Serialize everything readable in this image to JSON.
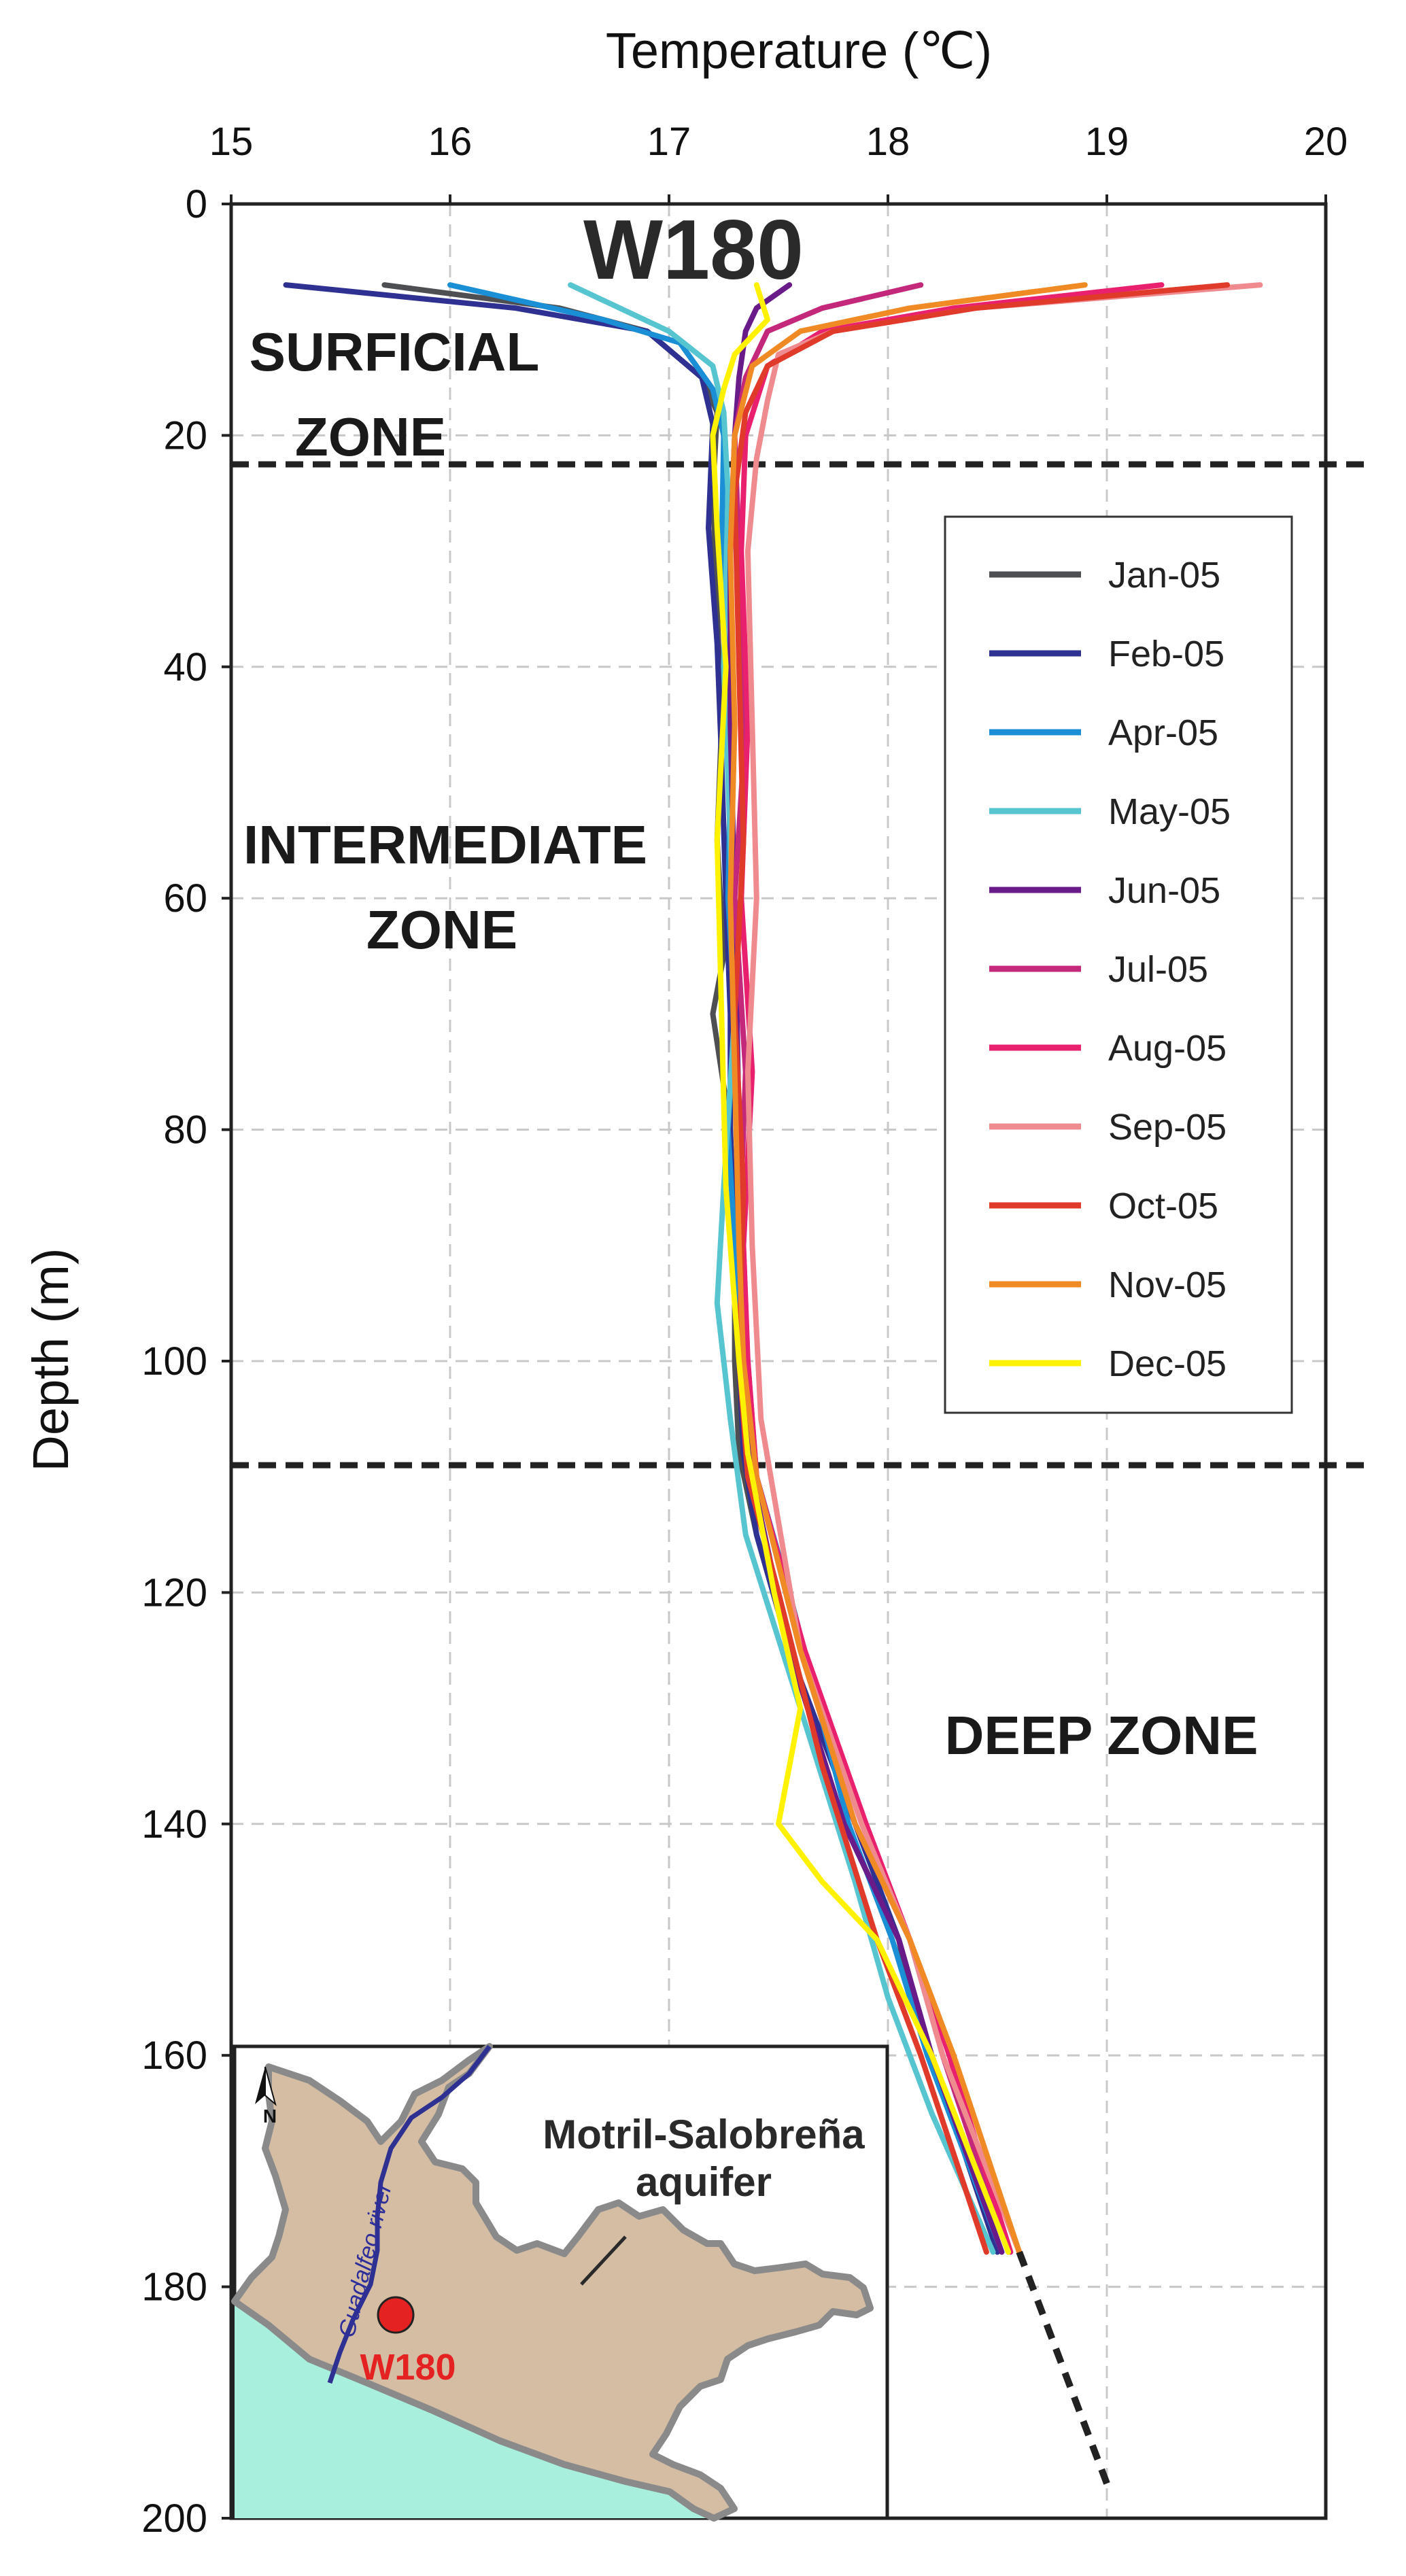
{
  "chart_data": {
    "type": "line",
    "title": "W180",
    "xlabel": "Temperature (℃)",
    "ylabel": "Depth (m)",
    "xlim": [
      15,
      20
    ],
    "ylim": [
      0,
      200
    ],
    "y_inverted": true,
    "x_ticks": [
      15,
      16,
      17,
      18,
      19,
      20
    ],
    "y_ticks": [
      0,
      20,
      40,
      60,
      80,
      100,
      120,
      140,
      160,
      180,
      200
    ],
    "grid": true,
    "legend_position": "right",
    "zone_boundaries": [
      22.5,
      109
    ],
    "zones": [
      {
        "name": "SURFICIAL ZONE",
        "lines": [
          "SURFICIAL",
          "ZONE"
        ]
      },
      {
        "name": "INTERMEDIATE ZONE",
        "lines": [
          "INTERMEDIATE",
          "ZONE"
        ]
      },
      {
        "name": "DEEP ZONE",
        "lines": [
          "DEEP ZONE"
        ]
      }
    ],
    "extrapolation": {
      "temperature": [
        18.6,
        19.0
      ],
      "depth": [
        177,
        197
      ]
    },
    "series": [
      {
        "name": "Jan-05",
        "color": "#4d4f52",
        "temperature": [
          15.7,
          16.5,
          16.9,
          17.15,
          17.22,
          17.2,
          17.22,
          17.24,
          17.22,
          17.25,
          17.2,
          17.28,
          17.3,
          17.3,
          17.32,
          17.4,
          17.55,
          17.8,
          18.05,
          18.1,
          18.4,
          18.5
        ],
        "depth": [
          7,
          9,
          11,
          15,
          18,
          25,
          35,
          45,
          55,
          65,
          70,
          80,
          90,
          100,
          108,
          115,
          125,
          140,
          150,
          155,
          170,
          177
        ]
      },
      {
        "name": "Feb-05",
        "color": "#2e3192",
        "temperature": [
          15.25,
          16.3,
          16.9,
          17.15,
          17.2,
          17.18,
          17.22,
          17.24,
          17.26,
          17.28,
          17.28,
          17.3,
          17.32,
          17.34,
          17.4,
          17.55,
          17.85,
          18.05,
          18.2,
          18.5
        ],
        "depth": [
          7,
          9,
          11,
          15,
          19,
          28,
          38,
          48,
          60,
          70,
          80,
          90,
          100,
          108,
          115,
          125,
          140,
          150,
          160,
          177
        ]
      },
      {
        "name": "Apr-05",
        "color": "#1a8fd6",
        "temperature": [
          16.0,
          16.7,
          17.05,
          17.2,
          17.25,
          17.24,
          17.26,
          17.28,
          17.27,
          17.3,
          17.27,
          17.3,
          17.34,
          17.4,
          17.55,
          17.82,
          18.02,
          18.18,
          18.52
        ],
        "depth": [
          7,
          10,
          12,
          16,
          20,
          30,
          40,
          50,
          60,
          70,
          80,
          90,
          100,
          110,
          120,
          140,
          150,
          160,
          177
        ]
      },
      {
        "name": "May-05",
        "color": "#56c5d0",
        "temperature": [
          16.55,
          17.0,
          17.2,
          17.25,
          17.27,
          17.25,
          17.28,
          17.3,
          17.25,
          17.22,
          17.28,
          17.35,
          17.6,
          17.85,
          18.0,
          18.2,
          18.48
        ],
        "depth": [
          7,
          11,
          14,
          18,
          25,
          40,
          55,
          70,
          85,
          95,
          105,
          115,
          130,
          145,
          155,
          165,
          177
        ]
      },
      {
        "name": "Jun-05",
        "color": "#6a1b8a",
        "temperature": [
          17.55,
          17.4,
          17.35,
          17.32,
          17.3,
          17.28,
          17.28,
          17.3,
          17.32,
          17.34,
          17.38,
          17.55,
          17.8,
          18.05,
          18.2,
          18.52
        ],
        "depth": [
          7,
          9,
          11,
          15,
          20,
          30,
          45,
          60,
          80,
          100,
          110,
          125,
          140,
          150,
          160,
          177
        ]
      },
      {
        "name": "Jul-05",
        "color": "#c4287a",
        "temperature": [
          18.15,
          17.7,
          17.45,
          17.35,
          17.3,
          17.32,
          17.35,
          17.3,
          17.35,
          17.32,
          17.36,
          17.4,
          17.6,
          17.85,
          18.1,
          18.25,
          18.55
        ],
        "depth": [
          7,
          9,
          11,
          15,
          20,
          30,
          45,
          60,
          75,
          90,
          100,
          110,
          125,
          140,
          150,
          160,
          177
        ]
      },
      {
        "name": "Aug-05",
        "color": "#e8206e",
        "temperature": [
          19.25,
          18.3,
          17.7,
          17.45,
          17.35,
          17.33,
          17.36,
          17.33,
          17.38,
          17.34,
          17.36,
          17.4,
          17.62,
          17.9,
          18.1,
          18.28,
          18.56
        ],
        "depth": [
          7,
          9,
          11,
          14,
          20,
          30,
          45,
          60,
          75,
          90,
          100,
          110,
          125,
          140,
          150,
          160,
          177
        ]
      },
      {
        "name": "Sep-05",
        "color": "#ef8a8f",
        "temperature": [
          19.7,
          18.4,
          17.75,
          17.5,
          17.45,
          17.4,
          17.36,
          17.38,
          17.4,
          17.36,
          17.38,
          17.42,
          17.6,
          17.88,
          18.1,
          18.25,
          18.6
        ],
        "depth": [
          7,
          9,
          11,
          13,
          17,
          22,
          30,
          45,
          60,
          75,
          90,
          105,
          125,
          140,
          150,
          160,
          177
        ]
      },
      {
        "name": "Oct-05",
        "color": "#e03a2a",
        "temperature": [
          19.55,
          18.4,
          17.75,
          17.45,
          17.35,
          17.3,
          17.32,
          17.34,
          17.3,
          17.34,
          17.32,
          17.36,
          17.5,
          17.7,
          17.95,
          18.15,
          18.45
        ],
        "depth": [
          7,
          9,
          11,
          14,
          18,
          25,
          40,
          55,
          70,
          85,
          100,
          110,
          120,
          135,
          150,
          160,
          177
        ]
      },
      {
        "name": "Nov-05",
        "color": "#f08a24",
        "temperature": [
          18.9,
          18.1,
          17.6,
          17.38,
          17.3,
          17.28,
          17.3,
          17.28,
          17.3,
          17.32,
          17.34,
          17.4,
          17.6,
          17.85,
          18.1,
          18.3,
          18.6
        ],
        "depth": [
          7,
          9,
          11,
          14,
          20,
          30,
          45,
          60,
          75,
          90,
          100,
          110,
          125,
          140,
          150,
          160,
          177
        ]
      },
      {
        "name": "Dec-05",
        "color": "#fff200",
        "temperature": [
          17.4,
          17.45,
          17.3,
          17.25,
          17.2,
          17.22,
          17.26,
          17.22,
          17.24,
          17.26,
          17.32,
          17.36,
          17.48,
          17.6,
          17.5,
          17.7,
          17.95,
          18.2,
          18.55
        ],
        "depth": [
          7,
          10,
          13,
          16,
          20,
          28,
          40,
          55,
          70,
          85,
          100,
          108,
          120,
          130,
          140,
          145,
          150,
          160,
          177
        ]
      }
    ],
    "inset": {
      "aquifer_label": [
        "Motril-Salobreña",
        "aquifer"
      ],
      "river_label": "Guadalfeo river",
      "well_label": "W180",
      "north_label": "N",
      "colors": {
        "land": "#d4bda3",
        "border": "#8a8a8a",
        "sea": "#a8f0dd",
        "river": "#2e3192",
        "well": "#e52222"
      }
    }
  }
}
